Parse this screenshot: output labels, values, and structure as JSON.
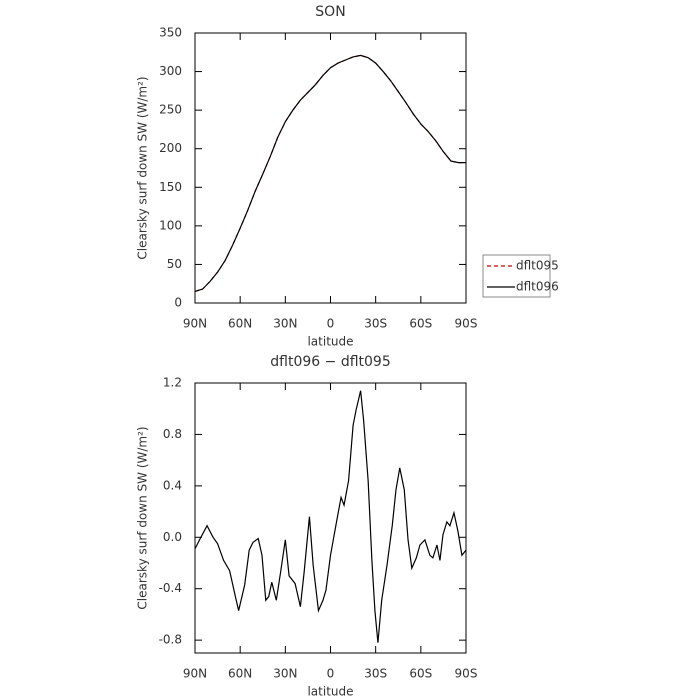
{
  "chart_data": [
    {
      "type": "line",
      "title": "SON",
      "xlabel": "latitude",
      "ylabel": "Clearsky surf down SW (W/m²)",
      "x": [
        90,
        85,
        80,
        75,
        70,
        65,
        60,
        55,
        50,
        45,
        40,
        35,
        30,
        25,
        20,
        15,
        10,
        5,
        0,
        -5,
        -10,
        -15,
        -20,
        -25,
        -30,
        -35,
        -40,
        -45,
        -50,
        -55,
        -60,
        -65,
        -70,
        -75,
        -80,
        -85,
        -90
      ],
      "series": [
        {
          "name": "dflt095",
          "color": "#cc0000",
          "dash": true,
          "values": [
            15,
            18,
            28,
            40,
            55,
            75,
            97,
            120,
            145,
            167,
            190,
            215,
            235,
            250,
            263,
            273,
            283,
            295,
            305,
            311,
            315,
            319,
            321,
            318,
            311,
            300,
            288,
            274,
            260,
            245,
            232,
            222,
            210,
            196,
            184,
            182,
            182
          ]
        },
        {
          "name": "dflt096",
          "color": "#000000",
          "dash": false,
          "values": [
            15,
            18,
            28,
            40,
            55,
            75,
            97,
            120,
            145,
            167,
            190,
            215,
            235,
            250,
            263,
            273,
            283,
            295,
            305,
            311,
            315,
            319,
            321,
            318,
            311,
            300,
            288,
            274,
            260,
            245,
            232,
            222,
            210,
            196,
            184,
            182,
            182
          ]
        }
      ],
      "xlim": [
        90,
        -90
      ],
      "xticks": [
        {
          "value": 90,
          "label": "90N"
        },
        {
          "value": 60,
          "label": "60N"
        },
        {
          "value": 30,
          "label": "30N"
        },
        {
          "value": 0,
          "label": "0"
        },
        {
          "value": -30,
          "label": "30S"
        },
        {
          "value": -60,
          "label": "60S"
        },
        {
          "value": -90,
          "label": "90S"
        }
      ],
      "ylim": [
        0,
        350
      ],
      "yticks": [
        0,
        50,
        100,
        150,
        200,
        250,
        300,
        350
      ],
      "legend": "right"
    },
    {
      "type": "line",
      "title": "dflt096 − dflt095",
      "xlabel": "latitude",
      "ylabel": "Clearsky surf down SW (W/m²)",
      "x": [
        90,
        87,
        82,
        78,
        75,
        71,
        67,
        63,
        61,
        57,
        54,
        51.5,
        48,
        45.5,
        43,
        41,
        39,
        36,
        33,
        30,
        27.5,
        23.5,
        20,
        17.5,
        14,
        11.5,
        8,
        5,
        3,
        0,
        -4,
        -7,
        -9,
        -12,
        -15,
        -17,
        -20,
        -22,
        -25,
        -27.5,
        -29.5,
        -31.5,
        -34,
        -37.5,
        -41,
        -43.5,
        -46,
        -49,
        -51.5,
        -54,
        -57,
        -59.4,
        -62.7,
        -66,
        -68,
        -70.7,
        -72.7,
        -74.7,
        -77.3,
        -79.3,
        -82,
        -84.6,
        -87.3,
        -90
      ],
      "series": [
        {
          "name": "dflt096 − dflt095",
          "color": "#000000",
          "dash": false,
          "values": [
            -0.09,
            -0.02,
            0.09,
            0.0,
            -0.05,
            -0.18,
            -0.26,
            -0.47,
            -0.57,
            -0.37,
            -0.1,
            -0.04,
            -0.01,
            -0.14,
            -0.49,
            -0.46,
            -0.35,
            -0.49,
            -0.26,
            -0.02,
            -0.3,
            -0.36,
            -0.54,
            -0.27,
            0.16,
            -0.22,
            -0.57,
            -0.49,
            -0.41,
            -0.14,
            0.12,
            0.31,
            0.25,
            0.44,
            0.87,
            0.99,
            1.14,
            0.91,
            0.44,
            -0.18,
            -0.57,
            -0.82,
            -0.49,
            -0.22,
            0.09,
            0.37,
            0.54,
            0.37,
            -0.02,
            -0.24,
            -0.16,
            -0.06,
            -0.02,
            -0.14,
            -0.16,
            -0.06,
            -0.18,
            0.02,
            0.12,
            0.09,
            0.19,
            0.05,
            -0.14,
            -0.1
          ]
        }
      ],
      "xlim": [
        90,
        -90
      ],
      "xticks": [
        {
          "value": 90,
          "label": "90N"
        },
        {
          "value": 60,
          "label": "60N"
        },
        {
          "value": 30,
          "label": "30N"
        },
        {
          "value": 0,
          "label": "0"
        },
        {
          "value": -30,
          "label": "30S"
        },
        {
          "value": -60,
          "label": "60S"
        },
        {
          "value": -90,
          "label": "90S"
        }
      ],
      "ylim": [
        -0.9,
        1.2
      ],
      "yticks": [
        -0.8,
        -0.4,
        {
          "value": 0,
          "label": "0.0"
        },
        0.4,
        0.8,
        1.2
      ]
    }
  ]
}
